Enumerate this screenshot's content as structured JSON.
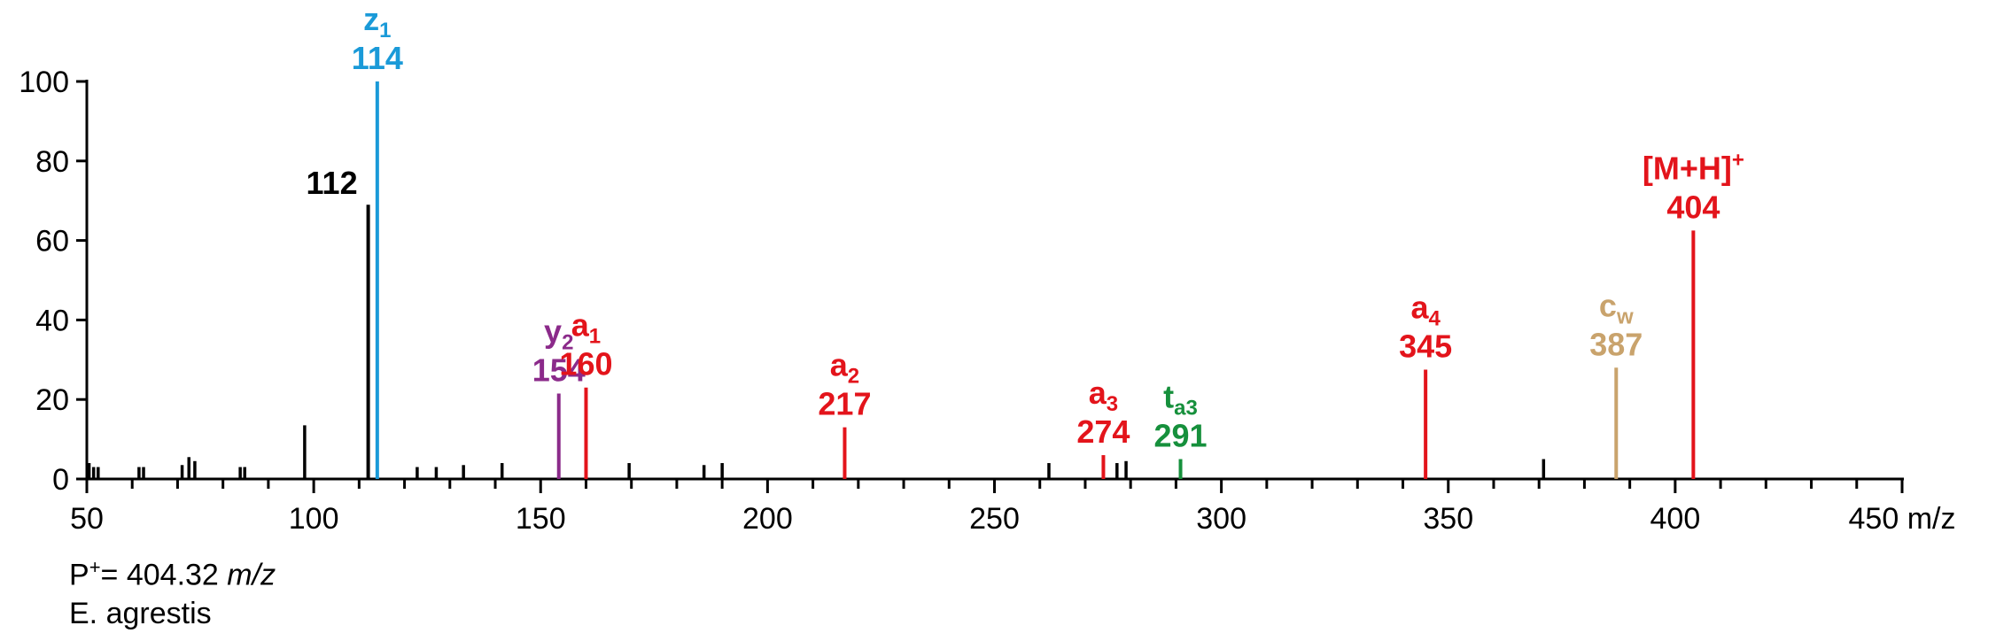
{
  "chart_data": {
    "type": "bar",
    "subtype": "mass-spectrum",
    "xlim": [
      50,
      450
    ],
    "ylim": [
      0,
      100
    ],
    "x_ticks": [
      50,
      100,
      150,
      200,
      250,
      300,
      350,
      400,
      450
    ],
    "y_ticks": [
      0,
      20,
      40,
      60,
      80,
      100
    ],
    "x_unit": "m/z",
    "colors": {
      "axis": "#000000",
      "black": "#000000",
      "blue": "#1a9ad8",
      "purple": "#8b2a8a",
      "red": "#e3141b",
      "green": "#16903c",
      "tan": "#c9a36c"
    },
    "peaks": [
      {
        "mz": 50.5,
        "intensity": 4,
        "color": "black"
      },
      {
        "mz": 51.5,
        "intensity": 3,
        "color": "black"
      },
      {
        "mz": 52.5,
        "intensity": 3,
        "color": "black"
      },
      {
        "mz": 61.5,
        "intensity": 3,
        "color": "black"
      },
      {
        "mz": 62.5,
        "intensity": 3,
        "color": "black"
      },
      {
        "mz": 71,
        "intensity": 3.5,
        "color": "black"
      },
      {
        "mz": 72.5,
        "intensity": 5.5,
        "color": "black"
      },
      {
        "mz": 73.8,
        "intensity": 4.5,
        "color": "black"
      },
      {
        "mz": 83.8,
        "intensity": 3,
        "color": "black"
      },
      {
        "mz": 84.8,
        "intensity": 3,
        "color": "black"
      },
      {
        "mz": 98,
        "intensity": 13.5,
        "color": "black"
      },
      {
        "mz": 112,
        "intensity": 69,
        "color": "black",
        "label": {
          "value": "112",
          "pos": "left"
        }
      },
      {
        "mz": 114,
        "intensity": 100,
        "color": "blue",
        "label": {
          "ion": "z",
          "sub": "1",
          "value": "114"
        }
      },
      {
        "mz": 122.8,
        "intensity": 3,
        "color": "black"
      },
      {
        "mz": 127,
        "intensity": 3,
        "color": "black"
      },
      {
        "mz": 133,
        "intensity": 3.5,
        "color": "black"
      },
      {
        "mz": 141.5,
        "intensity": 4,
        "color": "black"
      },
      {
        "mz": 154,
        "intensity": 21.5,
        "color": "purple",
        "label": {
          "ion": "y",
          "sub": "2",
          "value": "154"
        }
      },
      {
        "mz": 160,
        "intensity": 23,
        "color": "red",
        "label": {
          "ion": "a",
          "sub": "1",
          "value": "160"
        }
      },
      {
        "mz": 169.5,
        "intensity": 4,
        "color": "black"
      },
      {
        "mz": 186,
        "intensity": 3.5,
        "color": "black"
      },
      {
        "mz": 190,
        "intensity": 4,
        "color": "black"
      },
      {
        "mz": 217,
        "intensity": 13,
        "color": "red",
        "label": {
          "ion": "a",
          "sub": "2",
          "value": "217"
        }
      },
      {
        "mz": 262,
        "intensity": 4,
        "color": "black"
      },
      {
        "mz": 274,
        "intensity": 6,
        "color": "red",
        "label": {
          "ion": "a",
          "sub": "3",
          "value": "274"
        }
      },
      {
        "mz": 277,
        "intensity": 4,
        "color": "black"
      },
      {
        "mz": 279,
        "intensity": 4.5,
        "color": "black"
      },
      {
        "mz": 291,
        "intensity": 5,
        "color": "green",
        "label": {
          "ion": "t",
          "sub": "a3",
          "value": "291"
        }
      },
      {
        "mz": 345,
        "intensity": 27.5,
        "color": "red",
        "label": {
          "ion": "a",
          "sub": "4",
          "value": "345"
        }
      },
      {
        "mz": 371,
        "intensity": 5,
        "color": "black"
      },
      {
        "mz": 387,
        "intensity": 28,
        "color": "tan",
        "label": {
          "ion": "c",
          "sub": "w",
          "value": "387"
        }
      },
      {
        "mz": 404,
        "intensity": 62.5,
        "color": "red",
        "label": {
          "ion": "[M+H]",
          "sup": "+",
          "value": "404"
        }
      }
    ]
  },
  "footnotes": {
    "precursor_prefix": "P",
    "precursor_sup": "+",
    "precursor_value": "= 404.32 ",
    "precursor_unit": "m/z",
    "species": "E. agrestis"
  }
}
